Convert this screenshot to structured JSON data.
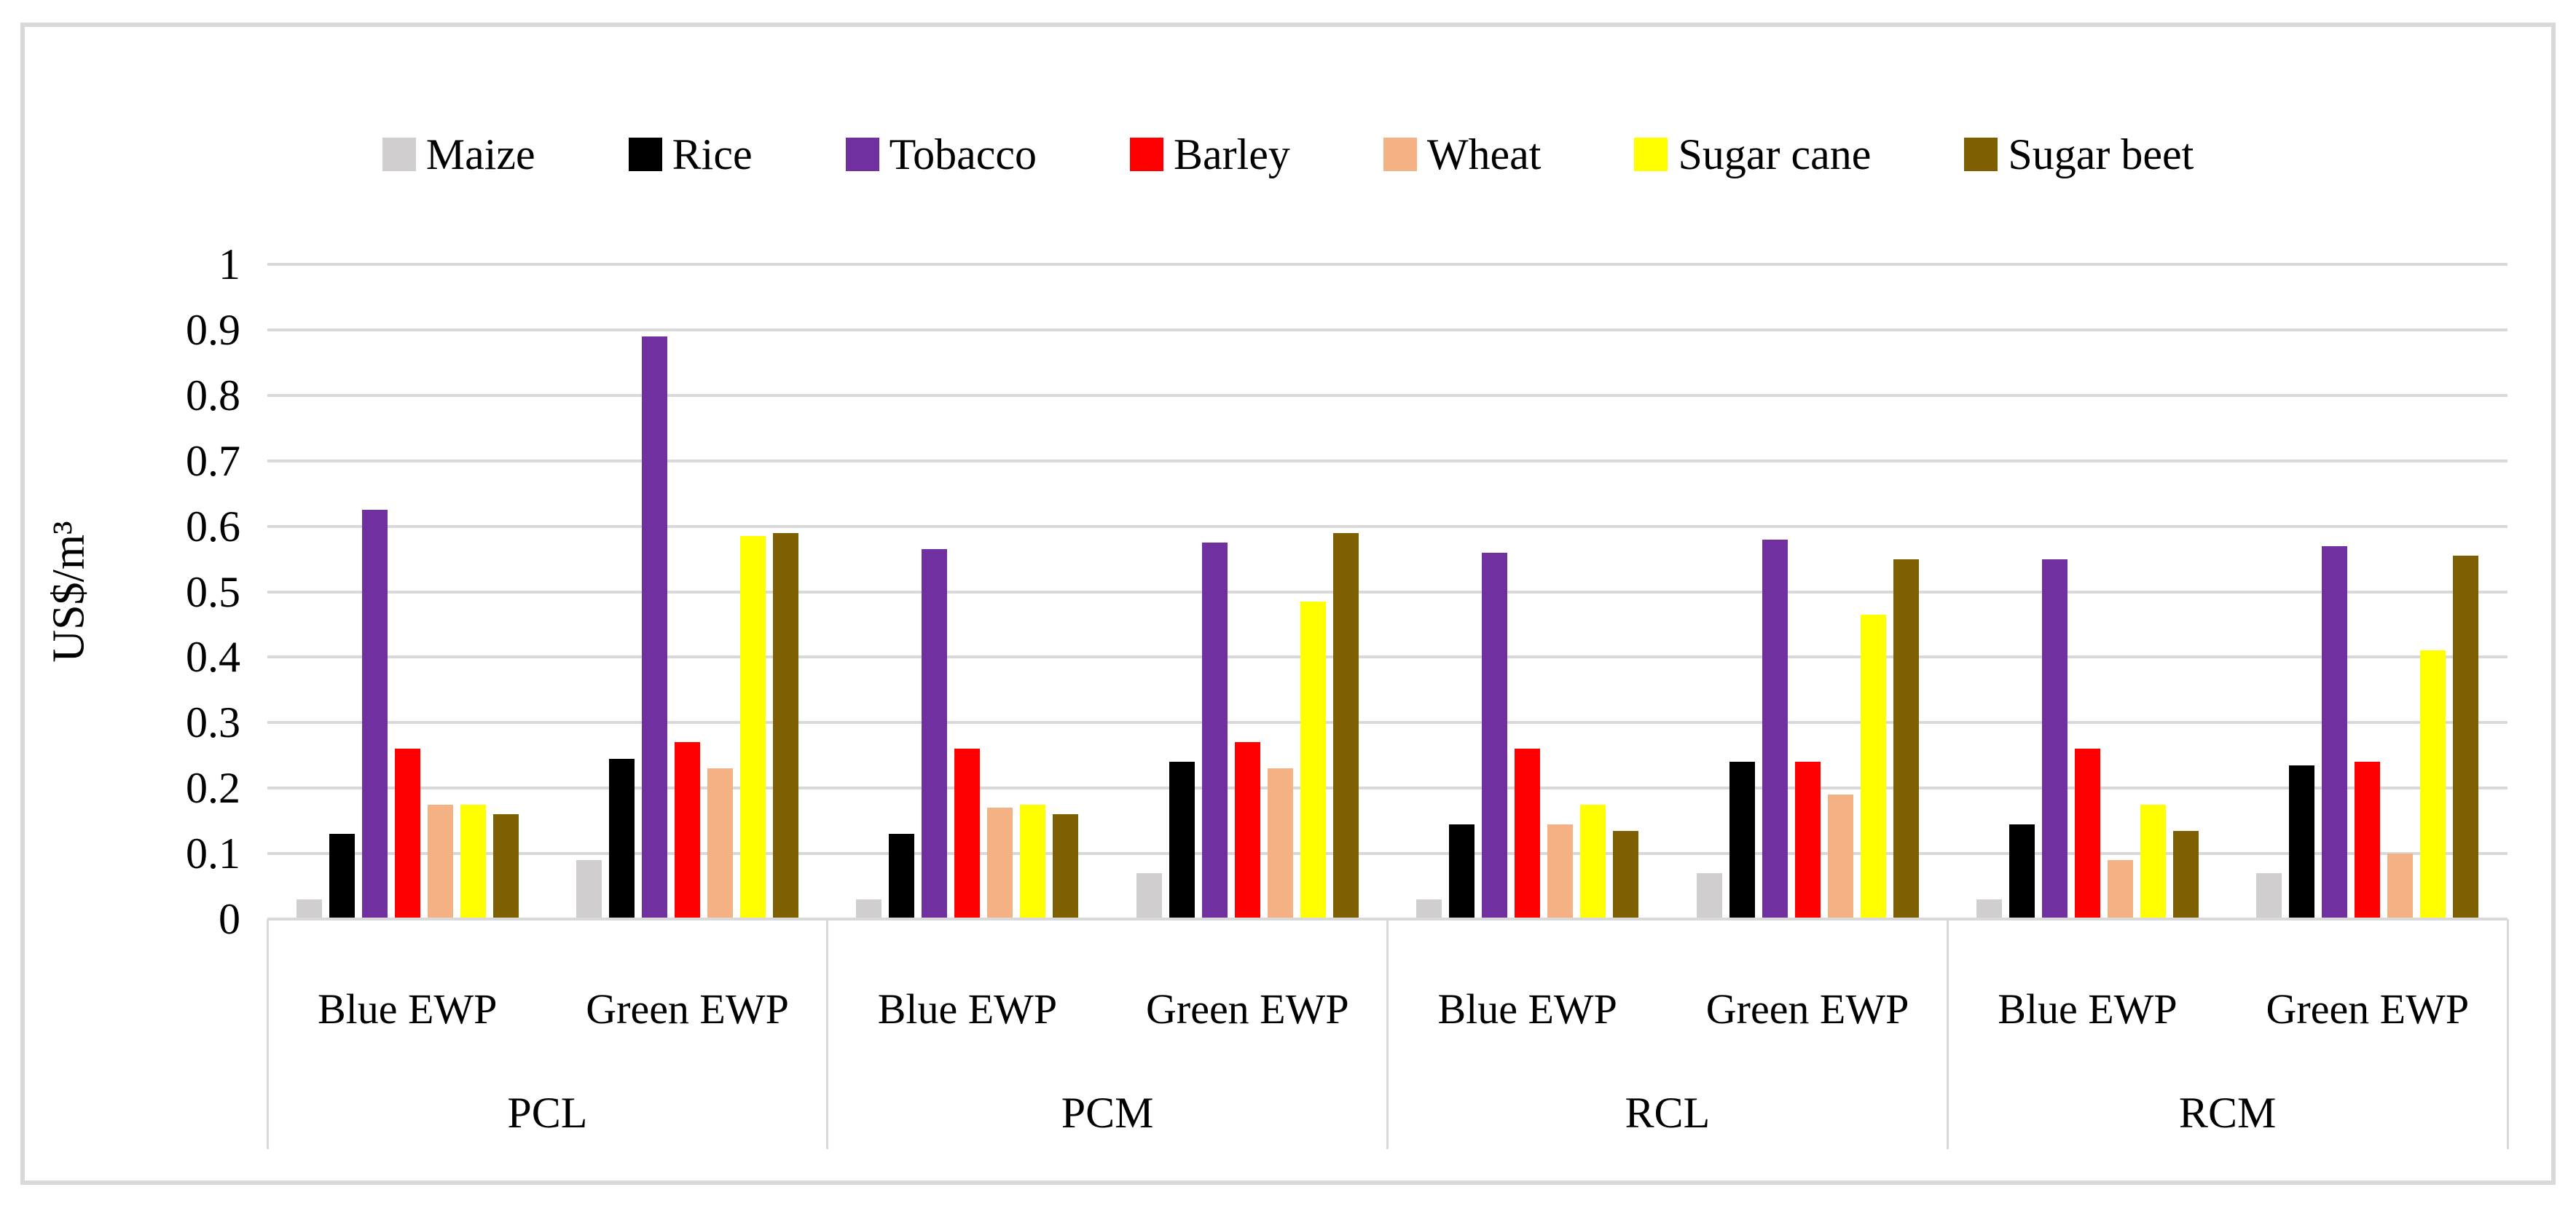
{
  "figure": {
    "background": "#ffffff",
    "frame_border_color": "#d9d9d9",
    "gridline_color": "#d9d9d9"
  },
  "chart_data": {
    "type": "bar",
    "title": "",
    "xlabel": "",
    "ylabel": "US$/m³",
    "ylim": [
      0,
      1
    ],
    "ytick_step": 0.1,
    "ytick_labels": [
      "0",
      "0.1",
      "0.2",
      "0.3",
      "0.4",
      "0.5",
      "0.6",
      "0.7",
      "0.8",
      "0.9",
      "1"
    ],
    "grid": "horizontal",
    "legend_position": "top",
    "groups": [
      "PCL",
      "PCM",
      "RCL",
      "RCM"
    ],
    "columns": [
      {
        "group": "PCL",
        "label": "Blue EWP"
      },
      {
        "group": "PCL",
        "label": "Green EWP"
      },
      {
        "group": "PCM",
        "label": "Blue EWP"
      },
      {
        "group": "PCM",
        "label": "Green EWP"
      },
      {
        "group": "RCL",
        "label": "Blue EWP"
      },
      {
        "group": "RCL",
        "label": "Green EWP"
      },
      {
        "group": "RCM",
        "label": "Blue EWP"
      },
      {
        "group": "RCM",
        "label": "Green EWP"
      }
    ],
    "series": [
      {
        "name": "Maize",
        "color": "#d0cece",
        "values": [
          0.03,
          0.09,
          0.03,
          0.07,
          0.03,
          0.07,
          0.03,
          0.07
        ]
      },
      {
        "name": "Rice",
        "color": "#000000",
        "values": [
          0.13,
          0.245,
          0.13,
          0.24,
          0.145,
          0.24,
          0.145,
          0.235
        ]
      },
      {
        "name": "Tobacco",
        "color": "#7030a0",
        "values": [
          0.625,
          0.89,
          0.565,
          0.575,
          0.56,
          0.58,
          0.55,
          0.57
        ]
      },
      {
        "name": "Barley",
        "color": "#ff0000",
        "values": [
          0.26,
          0.27,
          0.26,
          0.27,
          0.26,
          0.24,
          0.26,
          0.24
        ]
      },
      {
        "name": "Wheat",
        "color": "#f4b183",
        "values": [
          0.175,
          0.23,
          0.17,
          0.23,
          0.145,
          0.19,
          0.09,
          0.1
        ]
      },
      {
        "name": "Sugar cane",
        "color": "#ffff00",
        "values": [
          0.175,
          0.585,
          0.175,
          0.485,
          0.175,
          0.465,
          0.175,
          0.41
        ]
      },
      {
        "name": "Sugar beet",
        "color": "#7f6000",
        "values": [
          0.16,
          0.59,
          0.16,
          0.59,
          0.135,
          0.55,
          0.135,
          0.555
        ]
      }
    ]
  }
}
